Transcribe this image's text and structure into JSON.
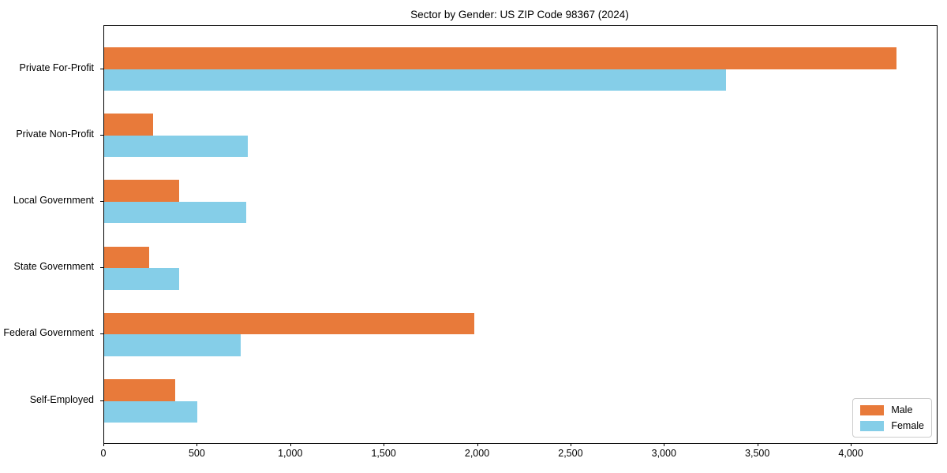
{
  "title": "Sector by Gender: US ZIP Code 98367 (2024)",
  "chart_data": {
    "type": "bar",
    "orientation": "horizontal",
    "title": "Sector by Gender: US ZIP Code 98367 (2024)",
    "categories": [
      "Private For-Profit",
      "Private Non-Profit",
      "Local Government",
      "State Government",
      "Federal Government",
      "Self-Employed"
    ],
    "series": [
      {
        "name": "Male",
        "color": "#E87A3A",
        "values": [
          4240,
          260,
          400,
          240,
          1980,
          380
        ]
      },
      {
        "name": "Female",
        "color": "#85CEE8",
        "values": [
          3330,
          770,
          760,
          400,
          730,
          500
        ]
      }
    ],
    "xlim": [
      0,
      4456
    ],
    "x_ticks": [
      0,
      500,
      1000,
      1500,
      2000,
      2500,
      3000,
      3500,
      4000
    ],
    "x_tick_labels": [
      "0",
      "500",
      "1,000",
      "1,500",
      "2,000",
      "2,500",
      "3,000",
      "3,500",
      "4,000"
    ],
    "xlabel": "",
    "ylabel": "",
    "grid": false,
    "legend_position": "lower right",
    "spines": "box",
    "background_color": "#ffffff",
    "spine_color": "#000000"
  }
}
